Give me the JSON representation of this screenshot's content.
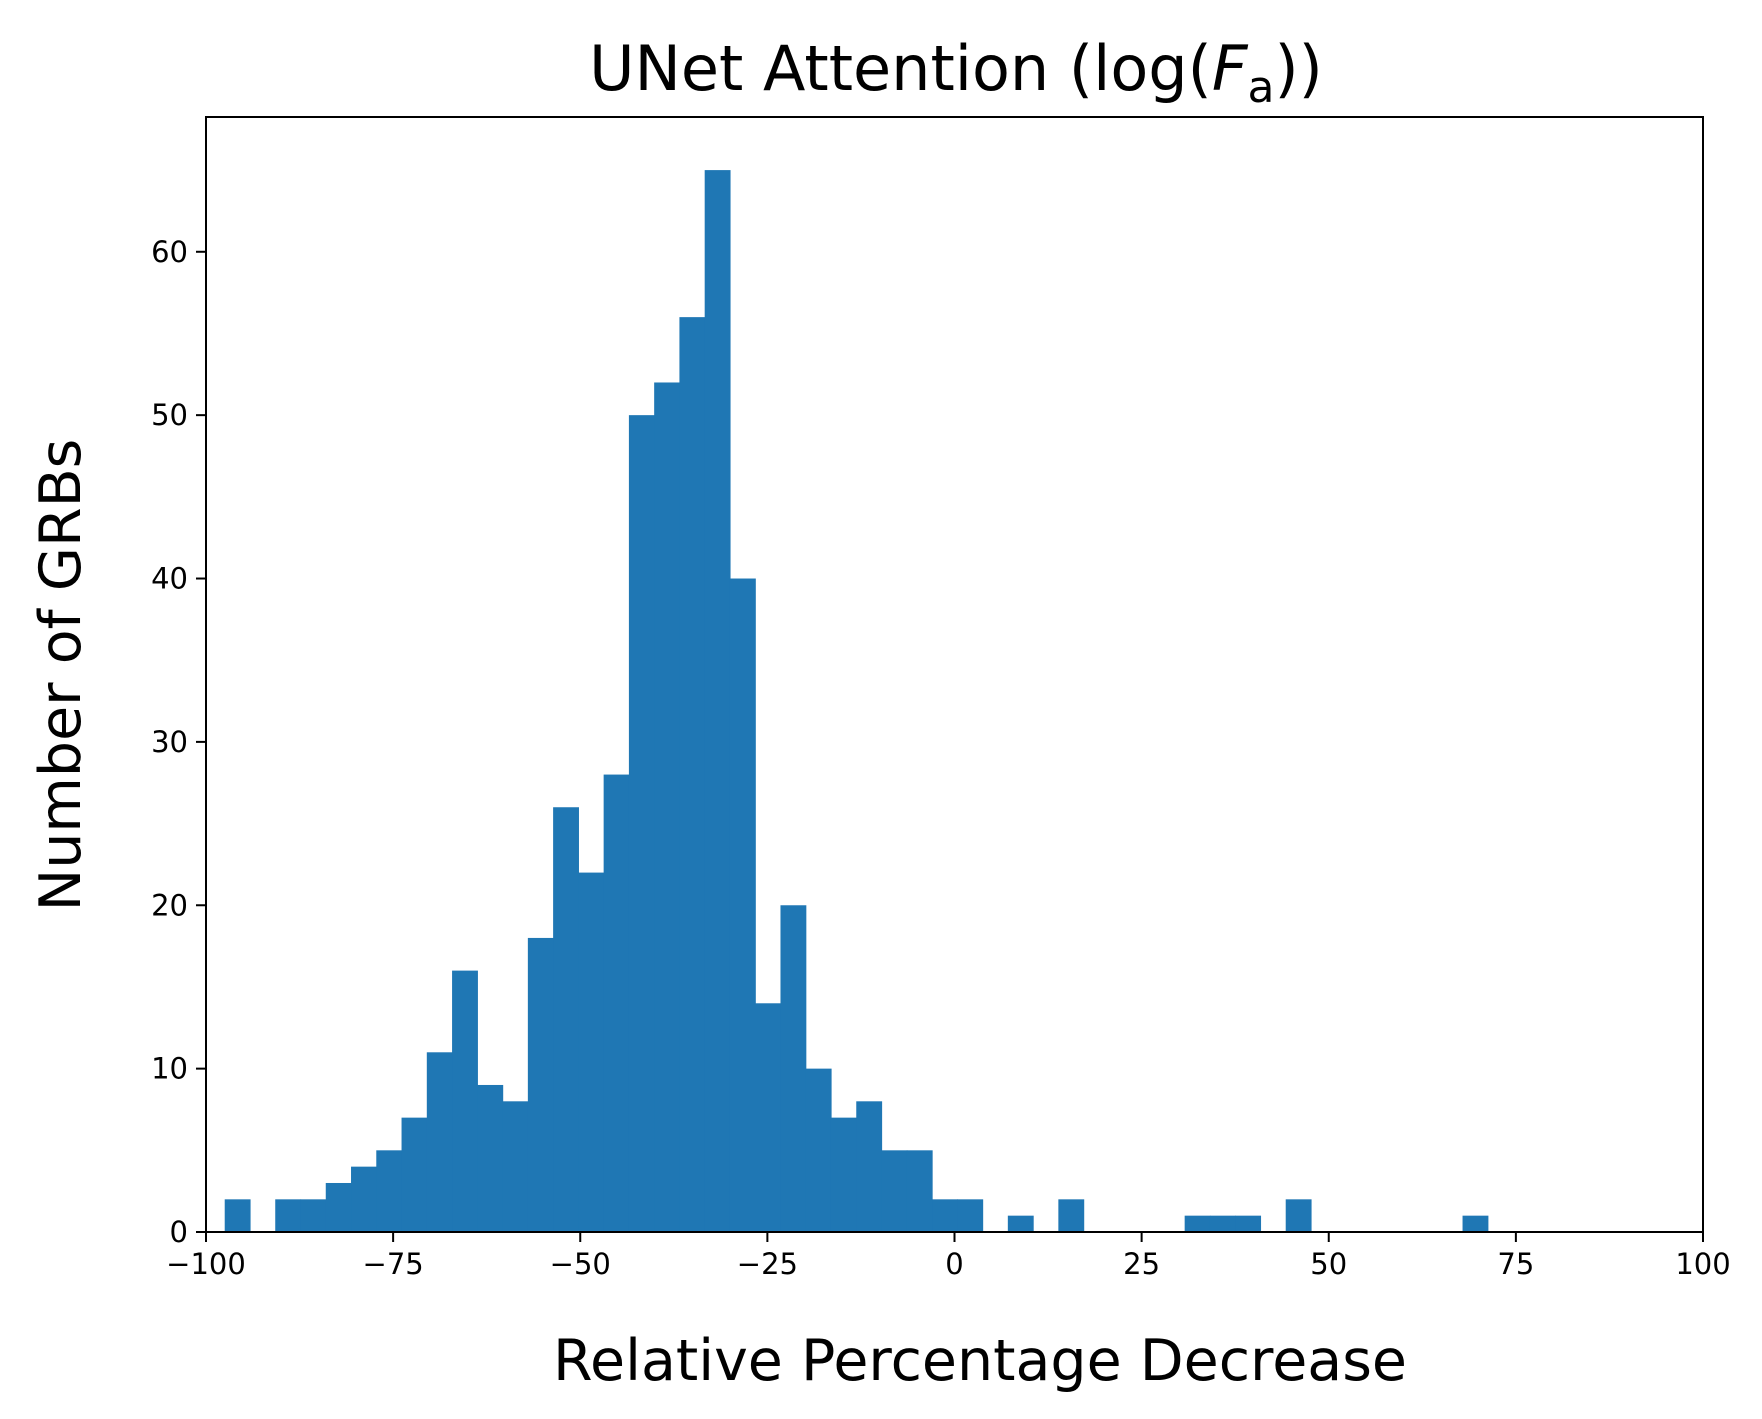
{
  "chart_data": {
    "type": "histogram",
    "title": {
      "prefix": "UNet Attention (log(",
      "symbol": "F",
      "subscript": "a",
      "suffix": "))"
    },
    "xlabel": "Relative Percentage Decrease",
    "ylabel": "Number of GRBs",
    "xlim": [
      -100,
      100
    ],
    "ylim": [
      0,
      68.25
    ],
    "xticks": [
      -100,
      -75,
      -50,
      -25,
      0,
      25,
      50,
      75,
      100
    ],
    "xtick_labels": [
      "−100",
      "−75",
      "−50",
      "−25",
      "0",
      "25",
      "50",
      "75",
      "100"
    ],
    "yticks": [
      0,
      10,
      20,
      30,
      40,
      50,
      60
    ],
    "ytick_labels": [
      "0",
      "10",
      "20",
      "30",
      "40",
      "50",
      "60"
    ],
    "bar_color": "#1f77b4",
    "grid": false,
    "legend": "none",
    "bin_start": -97.5,
    "bin_width": 3.375,
    "counts": [
      2,
      0,
      2,
      2,
      3,
      4,
      5,
      7,
      11,
      16,
      9,
      8,
      18,
      26,
      22,
      28,
      50,
      52,
      56,
      65,
      40,
      14,
      20,
      10,
      7,
      8,
      5,
      5,
      2,
      2,
      0,
      1,
      0,
      2,
      0,
      0,
      0,
      0,
      1,
      1,
      1,
      0,
      2,
      0,
      0,
      0,
      0,
      0,
      0,
      1
    ]
  }
}
